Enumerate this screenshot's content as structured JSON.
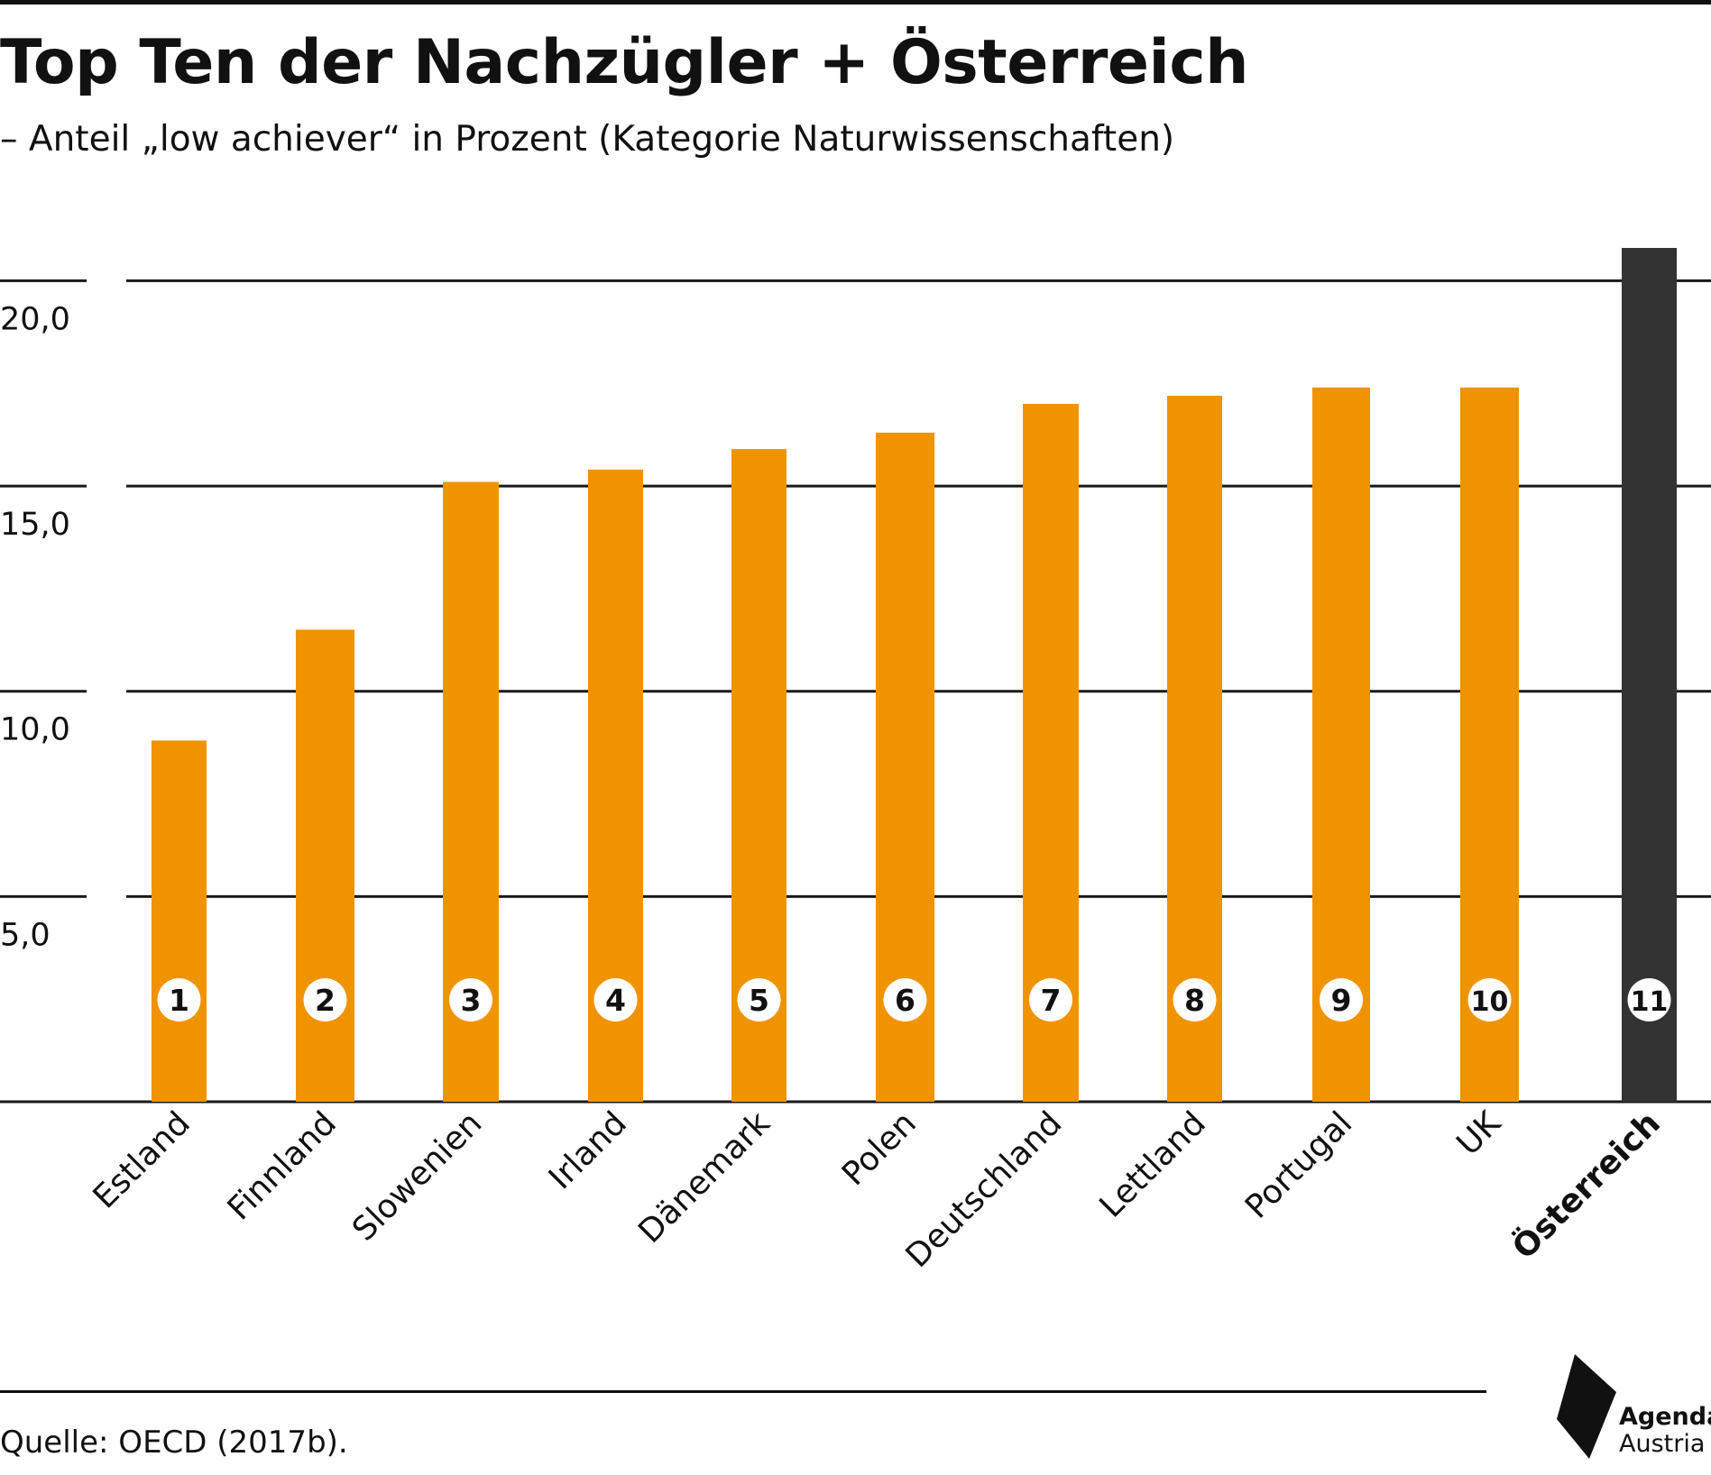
{
  "title": "Top Ten der Nachzügler + Österreich",
  "subtitle": "– Anteil „low achiever“ in Prozent (Kategorie Naturwissenschaften)",
  "source": "Quelle: OECD (2017b).",
  "logo": {
    "line1": "Agenda",
    "line2": "Austria",
    "icon": "agenda-austria-logo-icon"
  },
  "chart_data": {
    "type": "bar",
    "categories": [
      "Estland",
      "Finnland",
      "Slowenien",
      "Irland",
      "Dänemark",
      "Polen",
      "Deutschland",
      "Lettland",
      "Portugal",
      "UK",
      "Österreich"
    ],
    "ranks": [
      "1",
      "2",
      "3",
      "4",
      "5",
      "6",
      "7",
      "8",
      "9",
      "10",
      "11"
    ],
    "values": [
      8.8,
      11.5,
      15.1,
      15.4,
      15.9,
      16.3,
      17.0,
      17.2,
      17.4,
      17.4,
      20.8
    ],
    "highlight": "Österreich",
    "ylim": [
      0,
      20.8
    ],
    "yticks": [
      5,
      10,
      15,
      20
    ],
    "ytick_labels": [
      "5,0",
      "10,0",
      "15,0",
      "20,0"
    ],
    "grid": true,
    "colors": {
      "bar": "#f09300",
      "highlight": "#333333",
      "grid": "#1a1a1a",
      "badge": "#ffffff"
    }
  }
}
